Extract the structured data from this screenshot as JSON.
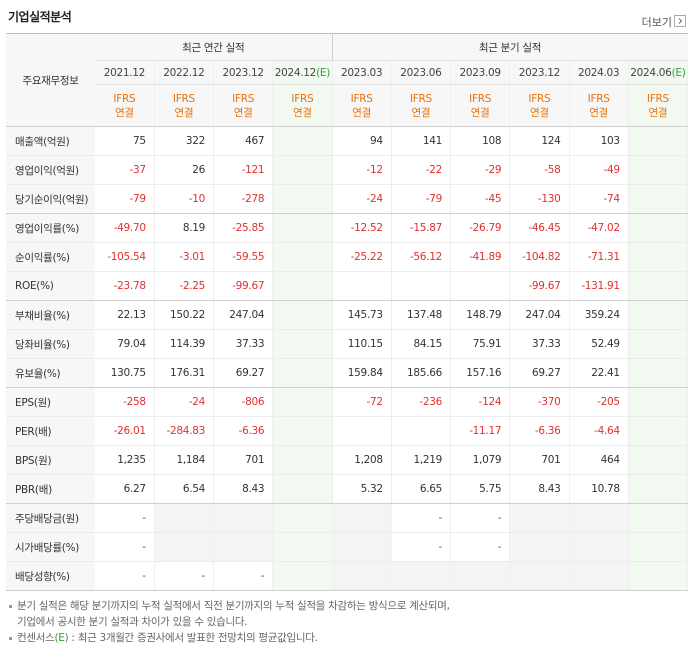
{
  "header": {
    "title": "기업실적분석",
    "more": "더보기"
  },
  "table": {
    "row_header": "주요재무정보",
    "groups": [
      {
        "label": "최근 연간 실적",
        "columns": [
          {
            "period": "2021.12",
            "standard": "IFRS",
            "scope": "연결"
          },
          {
            "period": "2022.12",
            "standard": "IFRS",
            "scope": "연결"
          },
          {
            "period": "2023.12",
            "standard": "IFRS",
            "scope": "연결"
          },
          {
            "period": "2024.12",
            "estimate": "(E)",
            "standard": "IFRS",
            "scope": "연결"
          }
        ]
      },
      {
        "label": "최근 분기 실적",
        "columns": [
          {
            "period": "2023.03",
            "standard": "IFRS",
            "scope": "연결"
          },
          {
            "period": "2023.06",
            "standard": "IFRS",
            "scope": "연결"
          },
          {
            "period": "2023.09",
            "standard": "IFRS",
            "scope": "연결"
          },
          {
            "period": "2023.12",
            "standard": "IFRS",
            "scope": "연결"
          },
          {
            "period": "2024.03",
            "standard": "IFRS",
            "scope": "연결"
          },
          {
            "period": "2024.06",
            "estimate": "(E)",
            "standard": "IFRS",
            "scope": "연결"
          }
        ]
      }
    ],
    "sections": [
      [
        {
          "label": "매출액(억원)",
          "values": [
            "75",
            "322",
            "467",
            null,
            "94",
            "141",
            "108",
            "124",
            "103",
            null
          ]
        },
        {
          "label": "영업이익(억원)",
          "values": [
            "-37",
            "26",
            "-121",
            null,
            "-12",
            "-22",
            "-29",
            "-58",
            "-49",
            null
          ]
        },
        {
          "label": "당기순이익(억원)",
          "values": [
            "-79",
            "-10",
            "-278",
            null,
            "-24",
            "-79",
            "-45",
            "-130",
            "-74",
            null
          ]
        }
      ],
      [
        {
          "label": "영업이익률(%)",
          "values": [
            "-49.70",
            "8.19",
            "-25.85",
            null,
            "-12.52",
            "-15.87",
            "-26.79",
            "-46.45",
            "-47.02",
            null
          ]
        },
        {
          "label": "순이익률(%)",
          "values": [
            "-105.54",
            "-3.01",
            "-59.55",
            null,
            "-25.22",
            "-56.12",
            "-41.89",
            "-104.82",
            "-71.31",
            null
          ]
        },
        {
          "label": "ROE(%)",
          "values": [
            "-23.78",
            "-2.25",
            "-99.67",
            null,
            null,
            null,
            null,
            "-99.67",
            "-131.91",
            null
          ]
        }
      ],
      [
        {
          "label": "부채비율(%)",
          "values": [
            "22.13",
            "150.22",
            "247.04",
            null,
            "145.73",
            "137.48",
            "148.79",
            "247.04",
            "359.24",
            null
          ]
        },
        {
          "label": "당좌비율(%)",
          "values": [
            "79.04",
            "114.39",
            "37.33",
            null,
            "110.15",
            "84.15",
            "75.91",
            "37.33",
            "52.49",
            null
          ]
        },
        {
          "label": "유보율(%)",
          "values": [
            "130.75",
            "176.31",
            "69.27",
            null,
            "159.84",
            "185.66",
            "157.16",
            "69.27",
            "22.41",
            null
          ]
        }
      ],
      [
        {
          "label": "EPS(원)",
          "values": [
            "-258",
            "-24",
            "-806",
            null,
            "-72",
            "-236",
            "-124",
            "-370",
            "-205",
            null
          ]
        },
        {
          "label": "PER(배)",
          "values": [
            "-26.01",
            "-284.83",
            "-6.36",
            null,
            null,
            null,
            "-11.17",
            "-6.36",
            "-4.64",
            null
          ]
        },
        {
          "label": "BPS(원)",
          "values": [
            "1,235",
            "1,184",
            "701",
            null,
            "1,208",
            "1,219",
            "1,079",
            "701",
            "464",
            null
          ]
        },
        {
          "label": "PBR(배)",
          "values": [
            "6.27",
            "6.54",
            "8.43",
            null,
            "5.32",
            "6.65",
            "5.75",
            "8.43",
            "10.78",
            null
          ]
        }
      ],
      [
        {
          "label": "주당배당금(원)",
          "values": [
            "-",
            null,
            null,
            null,
            null,
            "-",
            "-",
            null,
            null,
            null
          ]
        },
        {
          "label": "시가배당률(%)",
          "values": [
            "-",
            null,
            null,
            null,
            null,
            "-",
            "-",
            null,
            null,
            null
          ]
        },
        {
          "label": "배당성향(%)",
          "values": [
            "-",
            "-",
            "-",
            null,
            null,
            null,
            null,
            null,
            null,
            null
          ]
        }
      ]
    ]
  },
  "notes": [
    {
      "parts": [
        "분기 실적은 해당 분기까지의 누적 실적에서 직전 분기까지의 누적 실적을 차감하는 방식으로 계산되며,",
        "기업에서 공시한 분기 실적과 차이가 있을 수 있습니다."
      ]
    },
    {
      "parts": [
        "컨센서스",
        "(E)",
        " : 최근 3개월간 증권사에서 발표한 전망치의 평균값입니다."
      ]
    }
  ]
}
